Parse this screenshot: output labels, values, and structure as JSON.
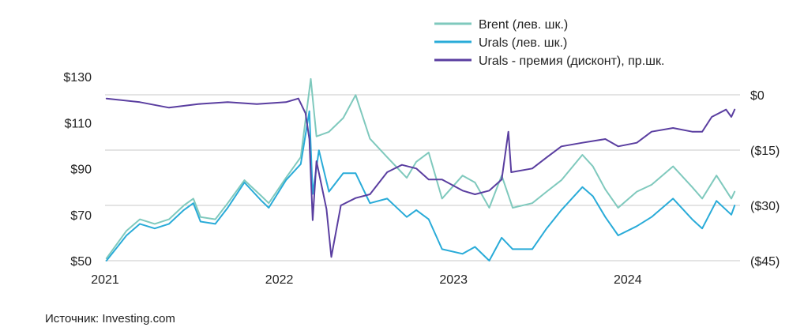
{
  "source_label": "Источник: Investing.com",
  "chart_data": {
    "type": "line",
    "x_type": "date",
    "x_ticks": [
      "2021",
      "2022",
      "2023",
      "2024"
    ],
    "x_tick_dates": [
      "2021-01-01",
      "2022-01-01",
      "2023-01-01",
      "2024-01-01"
    ],
    "xlim": [
      "2021-01-01",
      "2024-08-15"
    ],
    "left_axis": {
      "ylim": [
        50,
        130
      ],
      "ticks": [
        50,
        70,
        90,
        110,
        130
      ],
      "tick_labels": [
        "$50",
        "$70",
        "$90",
        "$110",
        "$130"
      ]
    },
    "right_axis": {
      "ylim": [
        -45,
        0
      ],
      "ticks": [
        0,
        -15,
        -30,
        -45
      ],
      "tick_labels": [
        "$0",
        "($15)",
        "($30)",
        "($45)"
      ]
    },
    "grid": "horizontal",
    "legend_position": "top-right",
    "series": [
      {
        "name": "Brent (лев. шк.)",
        "axis": "left",
        "color": "#7fc9bd",
        "points": [
          [
            "2021-01-04",
            51
          ],
          [
            "2021-02-15",
            63
          ],
          [
            "2021-03-15",
            68
          ],
          [
            "2021-04-15",
            66
          ],
          [
            "2021-05-15",
            68
          ],
          [
            "2021-06-15",
            74
          ],
          [
            "2021-07-05",
            77
          ],
          [
            "2021-07-20",
            69
          ],
          [
            "2021-08-20",
            68
          ],
          [
            "2021-09-15",
            75
          ],
          [
            "2021-10-20",
            85
          ],
          [
            "2021-11-25",
            78
          ],
          [
            "2021-12-10",
            75
          ],
          [
            "2022-01-15",
            86
          ],
          [
            "2022-02-15",
            95
          ],
          [
            "2022-03-08",
            129
          ],
          [
            "2022-03-20",
            104
          ],
          [
            "2022-04-15",
            106
          ],
          [
            "2022-05-15",
            112
          ],
          [
            "2022-06-10",
            122
          ],
          [
            "2022-07-10",
            103
          ],
          [
            "2022-08-15",
            95
          ],
          [
            "2022-09-25",
            86
          ],
          [
            "2022-10-15",
            93
          ],
          [
            "2022-11-10",
            97
          ],
          [
            "2022-12-08",
            77
          ],
          [
            "2023-01-20",
            87
          ],
          [
            "2023-02-15",
            84
          ],
          [
            "2023-03-17",
            73
          ],
          [
            "2023-04-12",
            87
          ],
          [
            "2023-05-05",
            73
          ],
          [
            "2023-06-15",
            75
          ],
          [
            "2023-07-15",
            80
          ],
          [
            "2023-08-15",
            85
          ],
          [
            "2023-09-28",
            96
          ],
          [
            "2023-10-20",
            91
          ],
          [
            "2023-11-15",
            81
          ],
          [
            "2023-12-12",
            73
          ],
          [
            "2024-01-20",
            80
          ],
          [
            "2024-02-20",
            83
          ],
          [
            "2024-04-05",
            91
          ],
          [
            "2024-05-15",
            82
          ],
          [
            "2024-06-05",
            77
          ],
          [
            "2024-07-05",
            87
          ],
          [
            "2024-08-05",
            77
          ],
          [
            "2024-08-12",
            80
          ]
        ]
      },
      {
        "name": "Urals (лев. шк.)",
        "axis": "left",
        "color": "#29abd8",
        "points": [
          [
            "2021-01-04",
            50
          ],
          [
            "2021-02-15",
            61
          ],
          [
            "2021-03-15",
            66
          ],
          [
            "2021-04-15",
            64
          ],
          [
            "2021-05-15",
            66
          ],
          [
            "2021-06-15",
            72
          ],
          [
            "2021-07-05",
            75
          ],
          [
            "2021-07-20",
            67
          ],
          [
            "2021-08-20",
            66
          ],
          [
            "2021-09-15",
            73
          ],
          [
            "2021-10-20",
            84
          ],
          [
            "2021-11-25",
            76
          ],
          [
            "2021-12-10",
            73
          ],
          [
            "2022-01-15",
            85
          ],
          [
            "2022-02-15",
            92
          ],
          [
            "2022-03-05",
            115
          ],
          [
            "2022-03-12",
            79
          ],
          [
            "2022-03-25",
            98
          ],
          [
            "2022-04-15",
            80
          ],
          [
            "2022-05-15",
            88
          ],
          [
            "2022-06-10",
            88
          ],
          [
            "2022-07-10",
            75
          ],
          [
            "2022-08-15",
            77
          ],
          [
            "2022-09-25",
            69
          ],
          [
            "2022-10-15",
            72
          ],
          [
            "2022-11-10",
            68
          ],
          [
            "2022-12-08",
            55
          ],
          [
            "2023-01-20",
            53
          ],
          [
            "2023-02-15",
            56
          ],
          [
            "2023-03-17",
            50
          ],
          [
            "2023-04-12",
            60
          ],
          [
            "2023-05-05",
            55
          ],
          [
            "2023-06-15",
            55
          ],
          [
            "2023-07-15",
            64
          ],
          [
            "2023-08-15",
            72
          ],
          [
            "2023-09-28",
            82
          ],
          [
            "2023-10-20",
            78
          ],
          [
            "2023-11-15",
            69
          ],
          [
            "2023-12-12",
            61
          ],
          [
            "2024-01-20",
            65
          ],
          [
            "2024-02-20",
            69
          ],
          [
            "2024-04-05",
            77
          ],
          [
            "2024-05-15",
            68
          ],
          [
            "2024-06-05",
            64
          ],
          [
            "2024-07-05",
            76
          ],
          [
            "2024-08-05",
            70
          ],
          [
            "2024-08-12",
            74
          ]
        ]
      },
      {
        "name": "Urals - премия (дисконт), пр.шк.",
        "axis": "right",
        "color": "#5a3ea0",
        "points": [
          [
            "2021-01-04",
            -1
          ],
          [
            "2021-03-15",
            -2
          ],
          [
            "2021-05-15",
            -3.5
          ],
          [
            "2021-07-15",
            -2.5
          ],
          [
            "2021-09-15",
            -2
          ],
          [
            "2021-11-15",
            -2.5
          ],
          [
            "2022-01-15",
            -2
          ],
          [
            "2022-02-10",
            -1
          ],
          [
            "2022-02-25",
            -5
          ],
          [
            "2022-03-05",
            -12
          ],
          [
            "2022-03-12",
            -34
          ],
          [
            "2022-03-20",
            -18
          ],
          [
            "2022-04-10",
            -31
          ],
          [
            "2022-04-20",
            -44
          ],
          [
            "2022-05-10",
            -30
          ],
          [
            "2022-06-10",
            -28
          ],
          [
            "2022-07-10",
            -27
          ],
          [
            "2022-08-15",
            -21
          ],
          [
            "2022-09-15",
            -19
          ],
          [
            "2022-10-15",
            -20
          ],
          [
            "2022-11-10",
            -23
          ],
          [
            "2022-12-08",
            -23
          ],
          [
            "2023-01-20",
            -26
          ],
          [
            "2023-02-15",
            -27
          ],
          [
            "2023-03-17",
            -26
          ],
          [
            "2023-04-12",
            -23
          ],
          [
            "2023-04-26",
            -10
          ],
          [
            "2023-05-02",
            -21
          ],
          [
            "2023-06-15",
            -20
          ],
          [
            "2023-07-15",
            -17
          ],
          [
            "2023-08-15",
            -14
          ],
          [
            "2023-09-28",
            -13
          ],
          [
            "2023-11-15",
            -12
          ],
          [
            "2023-12-12",
            -14
          ],
          [
            "2024-01-20",
            -13
          ],
          [
            "2024-02-20",
            -10
          ],
          [
            "2024-04-05",
            -9
          ],
          [
            "2024-05-15",
            -10
          ],
          [
            "2024-06-05",
            -10
          ],
          [
            "2024-06-25",
            -6
          ],
          [
            "2024-07-25",
            -4
          ],
          [
            "2024-08-05",
            -6
          ],
          [
            "2024-08-12",
            -4
          ]
        ]
      }
    ]
  }
}
